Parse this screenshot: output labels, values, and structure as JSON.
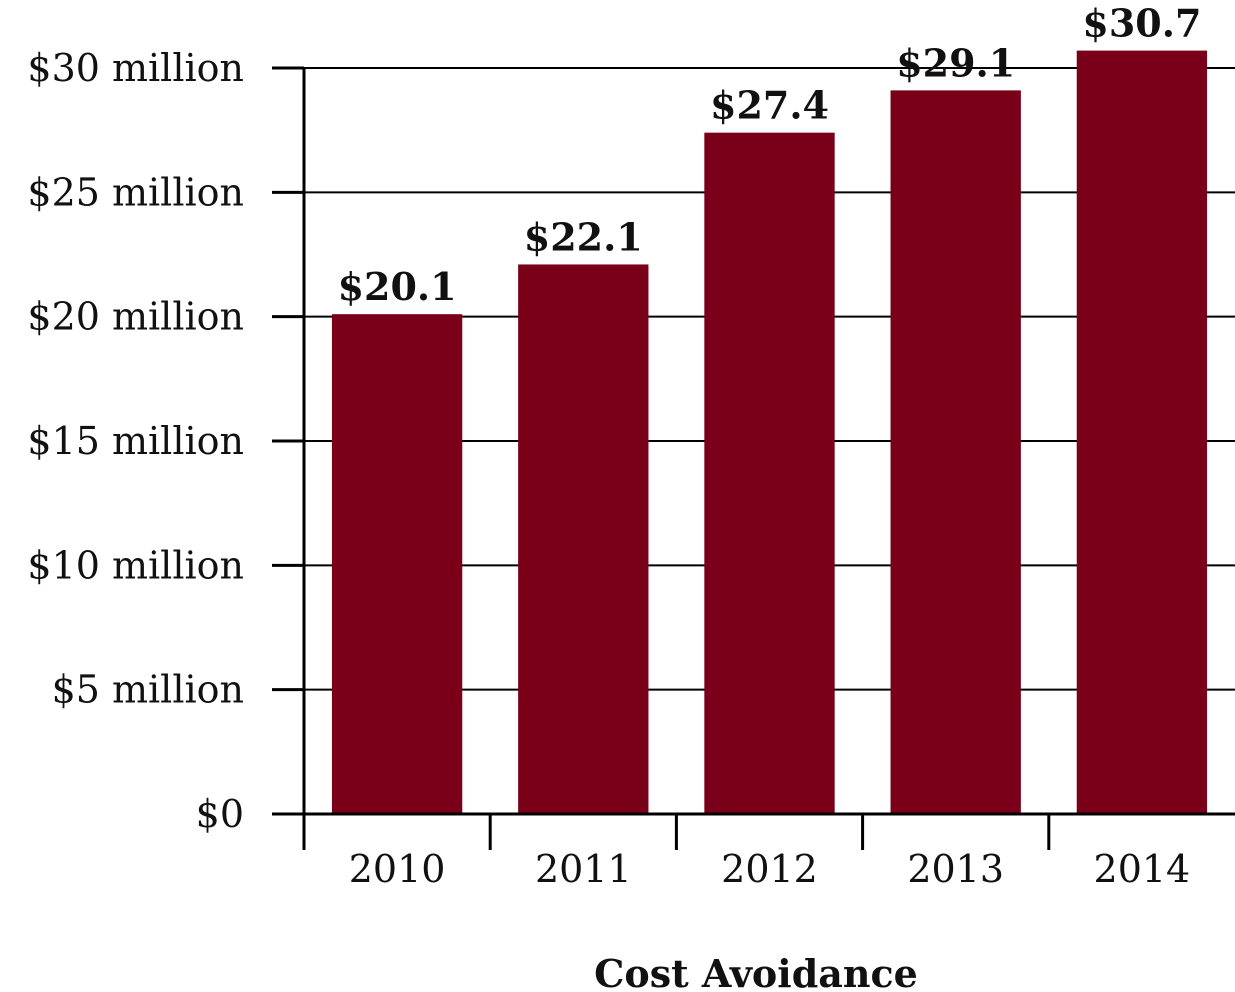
{
  "chart_data": {
    "type": "bar",
    "categories": [
      "2010",
      "2011",
      "2012",
      "2013",
      "2014"
    ],
    "values": [
      20.1,
      22.1,
      27.4,
      29.1,
      30.7
    ],
    "data_labels": [
      "$20.1",
      "$22.1",
      "$27.4",
      "$29.1",
      "$30.7"
    ],
    "xlabel": "Cost Avoidance",
    "ylabel": "",
    "ylim": [
      0,
      30
    ],
    "y_ticks": [
      0,
      5,
      10,
      15,
      20,
      25,
      30
    ],
    "y_tick_labels": [
      "$0",
      "$5 million",
      "$10 million",
      "$15 million",
      "$20 million",
      "$25 million",
      "$30 million"
    ],
    "grid": true,
    "bar_color": "#7a0019",
    "axis_color": "#000000"
  }
}
